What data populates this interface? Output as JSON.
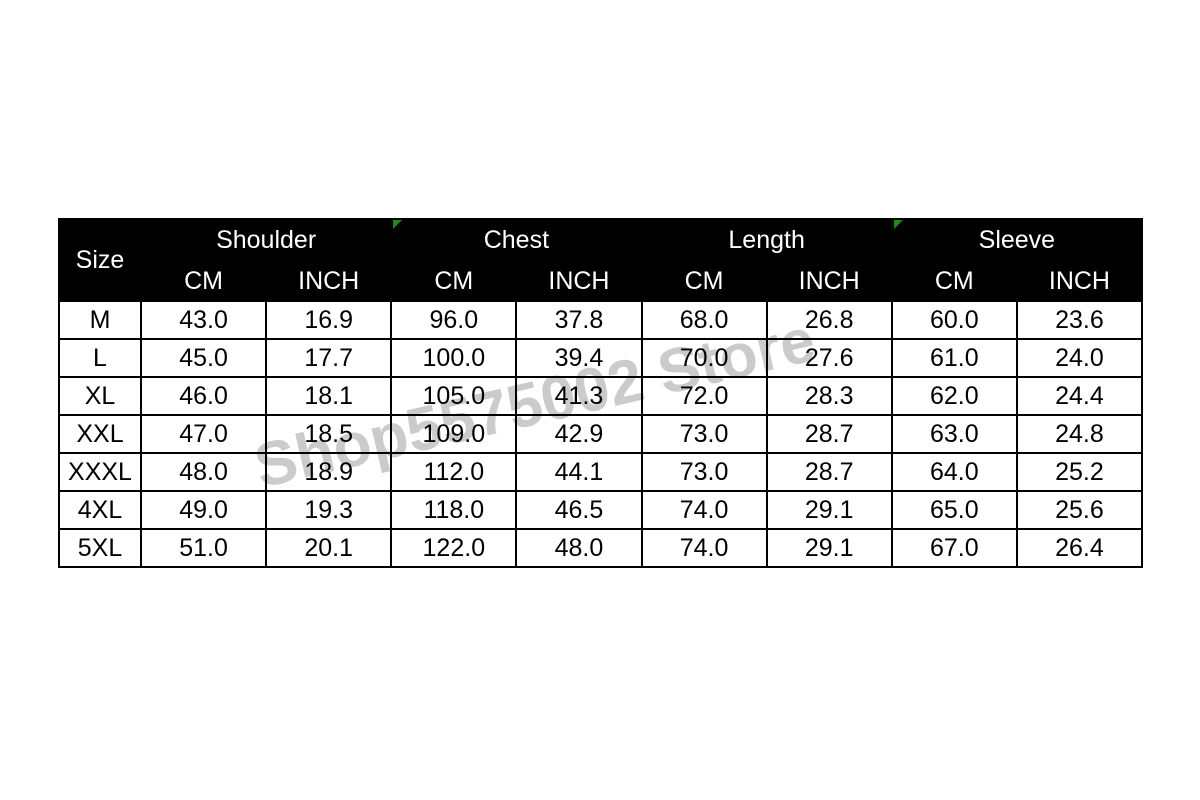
{
  "watermark": {
    "text": "Shop5575002 Store",
    "color": "#cbcbcb",
    "rotation_deg": -13
  },
  "style": {
    "corner_bg": "#ff0000",
    "header_bg": "#000000",
    "header_text": "#ffffff",
    "grid_color": "#000000",
    "marker_color": "#1e8a1e",
    "marker_icon": "excel-corner-triangle"
  },
  "chart_data": {
    "type": "table",
    "corner_label": "Size",
    "groups": [
      {
        "label": "Shoulder",
        "marker": false
      },
      {
        "label": "Chest",
        "marker": true
      },
      {
        "label": "Length",
        "marker": false
      },
      {
        "label": "Sleeve",
        "marker": true
      }
    ],
    "unit_labels": [
      "CM",
      "INCH"
    ],
    "rows": [
      {
        "size": "M",
        "values": [
          "43.0",
          "16.9",
          "96.0",
          "37.8",
          "68.0",
          "26.8",
          "60.0",
          "23.6"
        ]
      },
      {
        "size": "L",
        "values": [
          "45.0",
          "17.7",
          "100.0",
          "39.4",
          "70.0",
          "27.6",
          "61.0",
          "24.0"
        ]
      },
      {
        "size": "XL",
        "values": [
          "46.0",
          "18.1",
          "105.0",
          "41.3",
          "72.0",
          "28.3",
          "62.0",
          "24.4"
        ]
      },
      {
        "size": "XXL",
        "values": [
          "47.0",
          "18.5",
          "109.0",
          "42.9",
          "73.0",
          "28.7",
          "63.0",
          "24.8"
        ]
      },
      {
        "size": "XXXL",
        "values": [
          "48.0",
          "18.9",
          "112.0",
          "44.1",
          "73.0",
          "28.7",
          "64.0",
          "25.2"
        ]
      },
      {
        "size": "4XL",
        "values": [
          "49.0",
          "19.3",
          "118.0",
          "46.5",
          "74.0",
          "29.1",
          "65.0",
          "25.6"
        ]
      },
      {
        "size": "5XL",
        "values": [
          "51.0",
          "20.1",
          "122.0",
          "48.0",
          "74.0",
          "29.1",
          "67.0",
          "26.4"
        ]
      }
    ]
  }
}
